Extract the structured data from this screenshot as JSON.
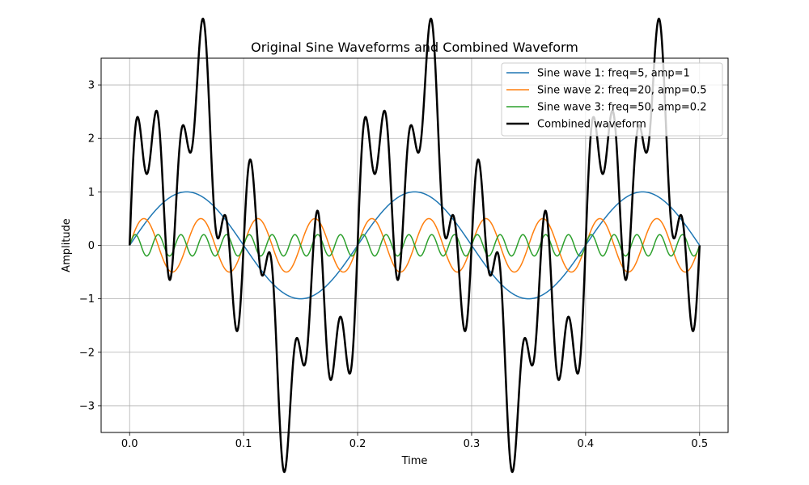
{
  "chart_data": {
    "type": "line",
    "title": "Original Sine Waveforms and Combined Waveform",
    "xlabel": "Time",
    "ylabel": "Amplitude",
    "xlim": [
      -0.025,
      0.525
    ],
    "ylim": [
      -3.5,
      3.5
    ],
    "x_ticks": [
      0.0,
      0.1,
      0.2,
      0.3,
      0.4,
      0.5
    ],
    "x_tick_labels": [
      "0.0",
      "0.1",
      "0.2",
      "0.3",
      "0.4",
      "0.5"
    ],
    "y_ticks": [
      -3,
      -2,
      -1,
      0,
      1,
      2,
      3
    ],
    "y_tick_labels": [
      "−3",
      "−2",
      "−1",
      "0",
      "1",
      "2",
      "3"
    ],
    "grid": true,
    "legend_position": "top-right",
    "x_range": [
      0,
      0.5
    ],
    "series": [
      {
        "name": "Sine wave 1: freq=5, amp=1",
        "kind": "sine",
        "freq": 5,
        "amp": 1,
        "color": "#1f77b4",
        "width": 1.5
      },
      {
        "name": "Sine wave 2: freq=20, amp=0.5",
        "kind": "sine",
        "freq": 20,
        "amp": 0.5,
        "color": "#ff7f0e",
        "width": 1.5
      },
      {
        "name": "Sine wave 3: freq=50, amp=0.2",
        "kind": "sine",
        "freq": 50,
        "amp": 0.2,
        "color": "#2ca02c",
        "width": 1.5
      },
      {
        "name": "Combined waveform",
        "kind": "combined",
        "color": "#000000",
        "width": 2.5
      }
    ]
  }
}
